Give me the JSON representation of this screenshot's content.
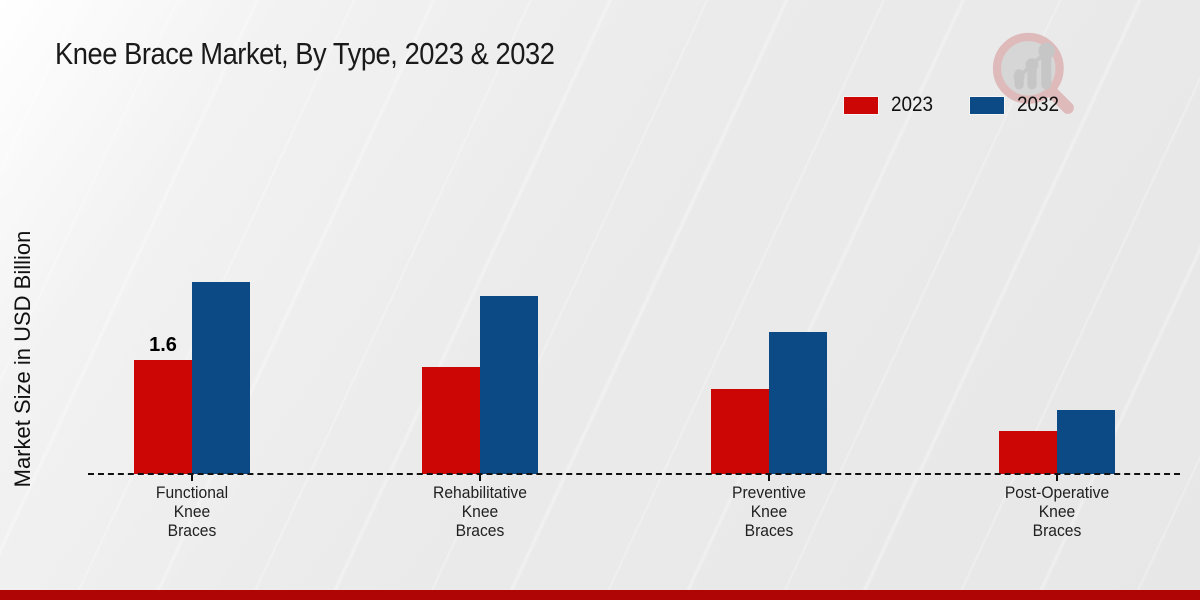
{
  "title": "Knee Brace Market, By Type, 2023 & 2032",
  "y_axis_label": "Market Size in USD Billion",
  "legend": {
    "items": [
      {
        "label": "2023",
        "color": "#cc0505"
      },
      {
        "label": "2032",
        "color": "#0b4a85"
      }
    ]
  },
  "watermark": {
    "icon": "magnifier-growth-chart-logo",
    "ring_color": "#debaba",
    "glyph_color": "#c6c6c6",
    "inner_color": "#d6d6d6"
  },
  "footer": {
    "bar_color": "#b00505"
  },
  "chart_data": {
    "type": "bar",
    "title": "Knee Brace Market, By Type, 2023 & 2032",
    "ylabel": "Market Size in USD Billion",
    "xlabel": "",
    "ylim": [
      0,
      3.0
    ],
    "grid": false,
    "legend_position": "top-right",
    "baseline_style": "dashed",
    "categories": [
      "Functional\nKnee\nBraces",
      "Rehabilitative\nKnee\nBraces",
      "Preventive\nKnee\nBraces",
      "Post-Operative\nKnee\nBraces"
    ],
    "series": [
      {
        "name": "2023",
        "color": "#cc0505",
        "values": [
          1.6,
          1.5,
          1.2,
          0.6
        ]
      },
      {
        "name": "2032",
        "color": "#0b4a85",
        "values": [
          2.7,
          2.5,
          2.0,
          0.9
        ]
      }
    ],
    "annotations": [
      {
        "series": "2023",
        "category_index": 0,
        "text": "1.6"
      }
    ]
  }
}
